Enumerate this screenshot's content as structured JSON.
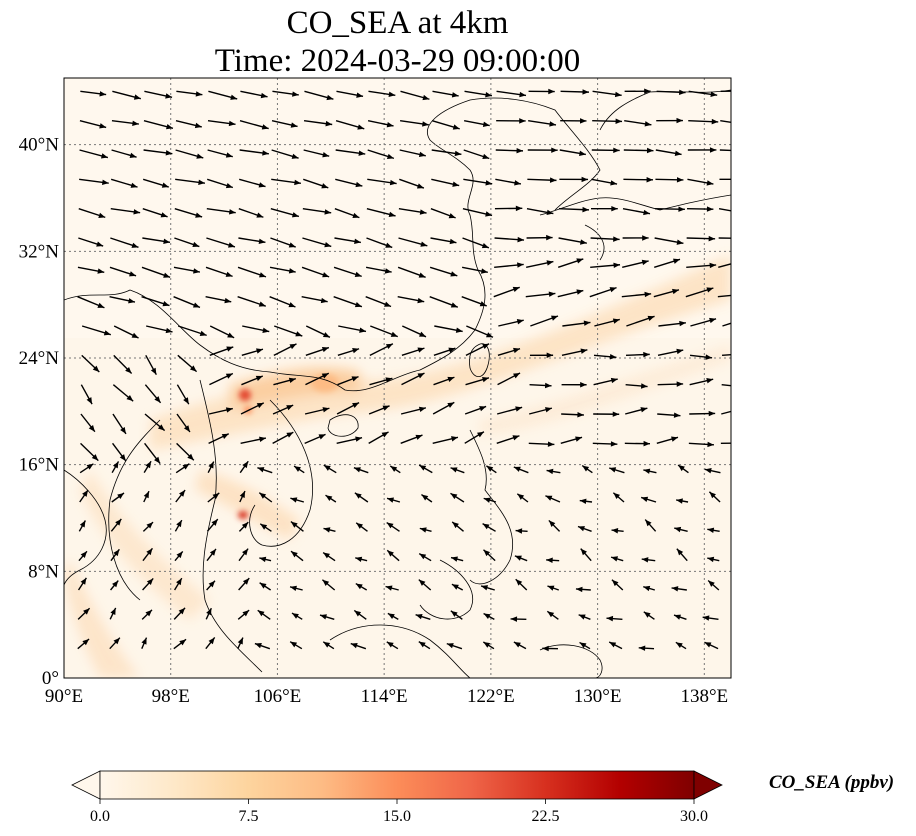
{
  "title": {
    "line1": "CO_SEA at 4km",
    "line2": "Time: 2024-03-29 09:00:00"
  },
  "map": {
    "lon_range": [
      90,
      140
    ],
    "lat_range": [
      0,
      45
    ],
    "lon_ticks": [
      {
        "value": 90,
        "label": "90°E"
      },
      {
        "value": 98,
        "label": "98°E"
      },
      {
        "value": 106,
        "label": "106°E"
      },
      {
        "value": 114,
        "label": "114°E"
      },
      {
        "value": 122,
        "label": "122°E"
      },
      {
        "value": 130,
        "label": "130°E"
      },
      {
        "value": 138,
        "label": "138°E"
      }
    ],
    "lat_ticks": [
      {
        "value": 0,
        "label": "0°"
      },
      {
        "value": 8,
        "label": "8°N"
      },
      {
        "value": 16,
        "label": "16°N"
      },
      {
        "value": 24,
        "label": "24°N"
      },
      {
        "value": 32,
        "label": "32°N"
      },
      {
        "value": 40,
        "label": "40°N"
      }
    ],
    "gridlines": true,
    "field_colormap": "OrRd",
    "wind_vectors": true
  },
  "colorbar": {
    "label": "CO_SEA (ppbv)",
    "min": 0.0,
    "max": 30.0,
    "extend": "both",
    "ticks": [
      "0.0",
      "7.5",
      "15.0",
      "22.5",
      "30.0"
    ],
    "colors": [
      "#fff7ec",
      "#fee8c8",
      "#fdd49e",
      "#fdbb84",
      "#fc8d59",
      "#ef6548",
      "#d7301f",
      "#b30000",
      "#7f0000"
    ]
  }
}
